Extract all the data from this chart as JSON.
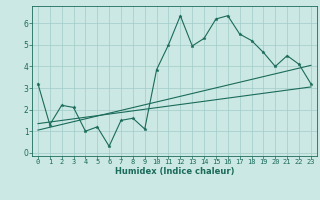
{
  "xlabel": "Humidex (Indice chaleur)",
  "bg_color": "#cce8e4",
  "line_color": "#1a6b5a",
  "grid_color": "#a0ccc8",
  "x_values": [
    0,
    1,
    2,
    3,
    4,
    5,
    6,
    7,
    8,
    9,
    10,
    11,
    12,
    13,
    14,
    15,
    16,
    17,
    18,
    19,
    20,
    21,
    22,
    23
  ],
  "y_main": [
    3.2,
    1.3,
    2.2,
    2.1,
    1.0,
    1.2,
    0.3,
    1.5,
    1.6,
    1.1,
    3.85,
    5.0,
    6.35,
    4.95,
    5.3,
    6.2,
    6.35,
    5.5,
    5.2,
    4.65,
    4.0,
    4.5,
    4.1,
    3.2
  ],
  "line1_x": [
    0,
    23
  ],
  "line1_y": [
    1.05,
    4.05
  ],
  "line2_x": [
    0,
    23
  ],
  "line2_y": [
    1.35,
    3.05
  ],
  "ylim": [
    -0.15,
    6.8
  ],
  "xlim": [
    -0.5,
    23.5
  ],
  "yticks": [
    0,
    1,
    2,
    3,
    4,
    5,
    6
  ],
  "xticks": [
    0,
    1,
    2,
    3,
    4,
    5,
    6,
    7,
    8,
    9,
    10,
    11,
    12,
    13,
    14,
    15,
    16,
    17,
    18,
    19,
    20,
    21,
    22,
    23
  ]
}
